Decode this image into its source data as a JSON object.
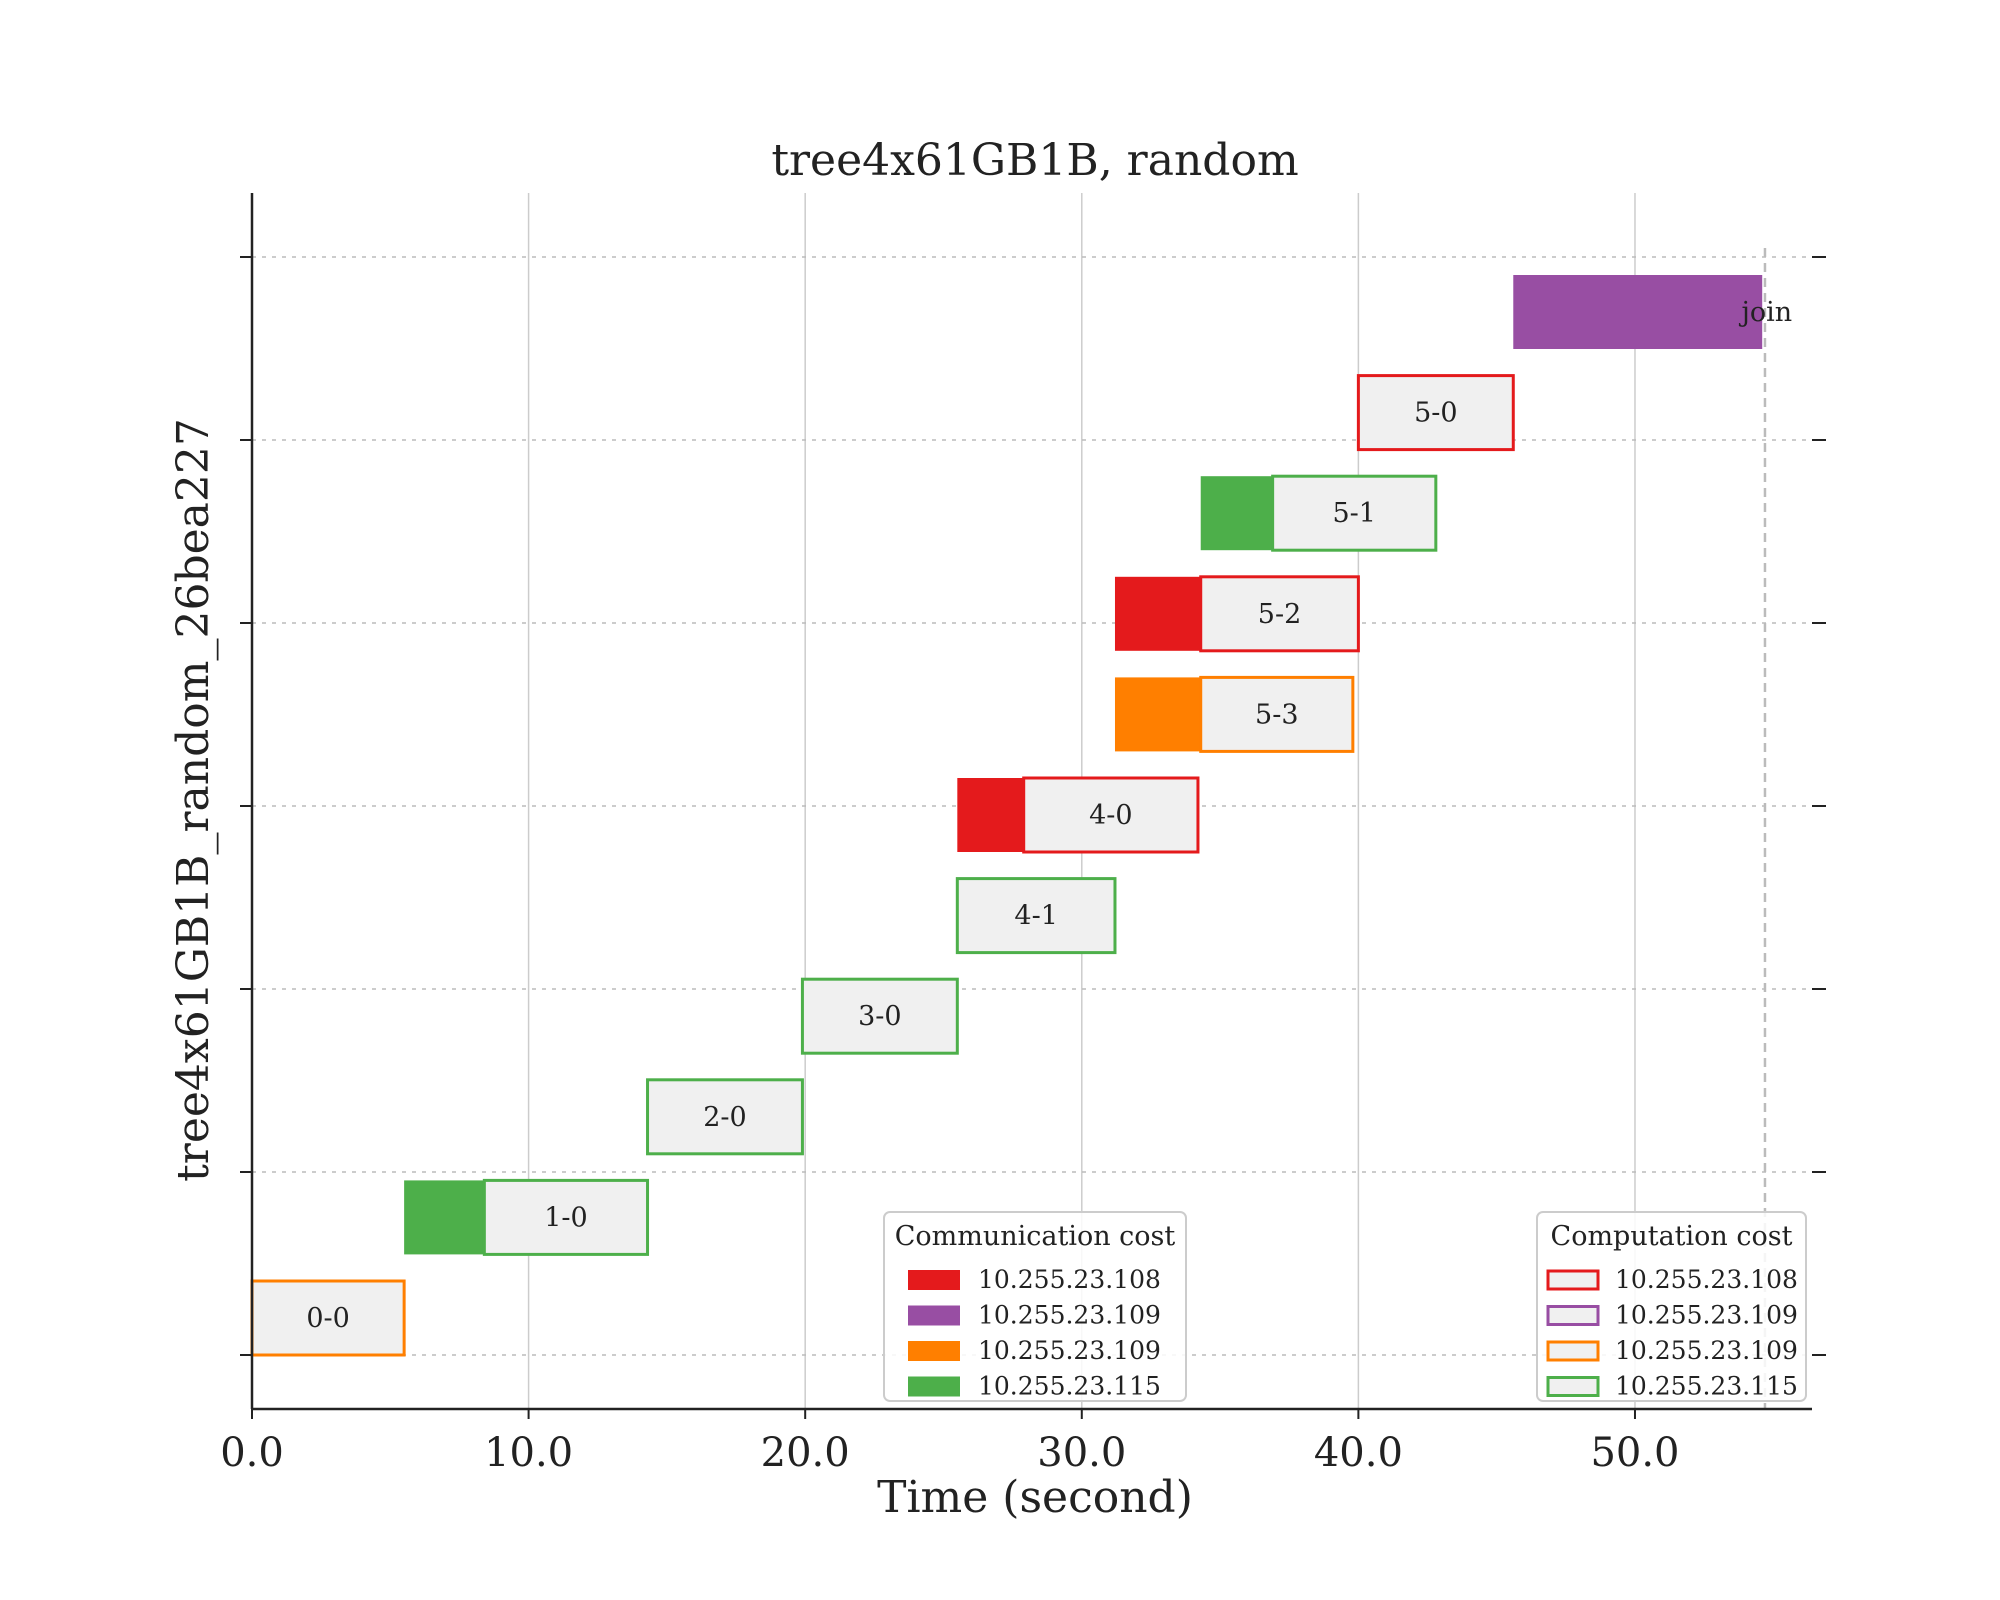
{
  "chart_data": {
    "type": "gantt",
    "title": "tree4x61GB1B, random",
    "xlabel": "Time (second)",
    "ylabel": "tree4x61GB1B_random_26bea227",
    "xlim": [
      0,
      56.4
    ],
    "xticks": [
      "0.0",
      "10.0",
      "20.0",
      "30.0",
      "40.0",
      "50.0"
    ],
    "xtick_values": [
      0,
      10,
      20,
      30,
      40,
      50
    ],
    "grid": {
      "x": "solid",
      "y": "dotted"
    },
    "end_marker": 54.7,
    "tasks": [
      {
        "label": "join",
        "comm_start": 45.6,
        "comp_start": 54.6,
        "end": 54.6,
        "host": "10.255.23.109",
        "comm_color": "#984ea3",
        "comp_color": "#984ea3"
      },
      {
        "label": "5-0",
        "comm_start": 40.0,
        "comp_start": 40.0,
        "end": 45.6,
        "host": "10.255.23.108",
        "comm_color": "#e41a1c",
        "comp_color": "#e41a1c"
      },
      {
        "label": "5-1",
        "comm_start": 34.3,
        "comp_start": 36.9,
        "end": 42.8,
        "host": "10.255.23.115",
        "comm_color": "#4daf4a",
        "comp_color": "#4daf4a"
      },
      {
        "label": "5-2",
        "comm_start": 31.2,
        "comp_start": 34.3,
        "end": 40.0,
        "host": "10.255.23.108",
        "comm_color": "#e41a1c",
        "comp_color": "#e41a1c"
      },
      {
        "label": "5-3",
        "comm_start": 31.2,
        "comp_start": 34.3,
        "end": 39.8,
        "host": "10.255.23.109",
        "comm_color": "#ff7f00",
        "comp_color": "#ff7f00"
      },
      {
        "label": "4-0",
        "comm_start": 25.5,
        "comp_start": 27.9,
        "end": 34.2,
        "host": "10.255.23.108",
        "comm_color": "#e41a1c",
        "comp_color": "#e41a1c"
      },
      {
        "label": "4-1",
        "comm_start": 25.5,
        "comp_start": 25.5,
        "end": 31.2,
        "host": "10.255.23.115",
        "comm_color": "#4daf4a",
        "comp_color": "#4daf4a"
      },
      {
        "label": "3-0",
        "comm_start": 19.9,
        "comp_start": 19.9,
        "end": 25.5,
        "host": "10.255.23.115",
        "comm_color": "#4daf4a",
        "comp_color": "#4daf4a"
      },
      {
        "label": "2-0",
        "comm_start": 14.3,
        "comp_start": 14.3,
        "end": 19.9,
        "host": "10.255.23.115",
        "comm_color": "#4daf4a",
        "comp_color": "#4daf4a"
      },
      {
        "label": "1-0",
        "comm_start": 5.5,
        "comp_start": 8.4,
        "end": 14.3,
        "host": "10.255.23.115",
        "comm_color": "#4daf4a",
        "comp_color": "#4daf4a"
      },
      {
        "label": "0-0",
        "comm_start": 0.0,
        "comp_start": 0.0,
        "end": 5.5,
        "host": "10.255.23.109",
        "comm_color": "#ff7f00",
        "comp_color": "#ff7f00"
      }
    ],
    "legends": [
      {
        "title": "Communication cost",
        "position": "bottom-center",
        "style": "filled",
        "entries": [
          {
            "label": "10.255.23.108",
            "color": "#e41a1c"
          },
          {
            "label": "10.255.23.109",
            "color": "#984ea3"
          },
          {
            "label": "10.255.23.109",
            "color": "#ff7f00"
          },
          {
            "label": "10.255.23.115",
            "color": "#4daf4a"
          }
        ]
      },
      {
        "title": "Computation cost",
        "position": "bottom-right",
        "style": "outlined",
        "entries": [
          {
            "label": "10.255.23.108",
            "color": "#e41a1c"
          },
          {
            "label": "10.255.23.109",
            "color": "#984ea3"
          },
          {
            "label": "10.255.23.109",
            "color": "#ff7f00"
          },
          {
            "label": "10.255.23.115",
            "color": "#4daf4a"
          }
        ]
      }
    ],
    "colors": {
      "computation_fill": "#f0f0f0",
      "axis": "#222222",
      "grid": "#cccccc"
    }
  }
}
